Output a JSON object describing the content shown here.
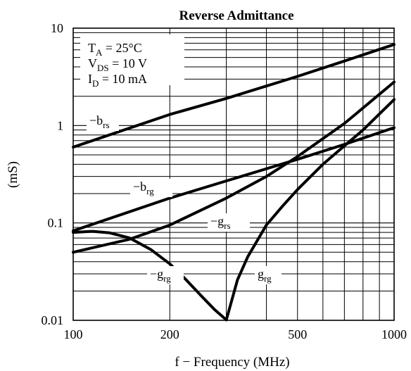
{
  "chart_data": {
    "type": "line",
    "title": "Reverse Admittance",
    "xlabel": "f − Frequency (MHz)",
    "ylabel": "(mS)",
    "xscale": "log",
    "yscale": "log",
    "xlim": [
      100,
      1000
    ],
    "ylim": [
      0.01,
      10
    ],
    "grid": true,
    "x_ticks": [
      {
        "value": 100,
        "label": "100"
      },
      {
        "value": 200,
        "label": "200"
      },
      {
        "value": 500,
        "label": "500"
      },
      {
        "value": 1000,
        "label": "1000"
      }
    ],
    "y_ticks": [
      {
        "value": 0.01,
        "label": "0.01"
      },
      {
        "value": 0.1,
        "label": "0.1"
      },
      {
        "value": 1,
        "label": "1"
      },
      {
        "value": 10,
        "label": "10"
      }
    ],
    "conditions": [
      {
        "symbol": "T",
        "sub": "A",
        "rest": " = 25°C"
      },
      {
        "symbol": "V",
        "sub": "DS",
        "rest": " = 10 V"
      },
      {
        "symbol": "I",
        "sub": "D",
        "rest": " = 10 mA"
      }
    ],
    "series": [
      {
        "name": "−brs",
        "label_main": "−b",
        "label_sub": "rs",
        "x": [
          100,
          200,
          300,
          500,
          700,
          1000
        ],
        "y": [
          0.6,
          1.3,
          1.9,
          3.2,
          4.6,
          6.8
        ]
      },
      {
        "name": "−brg",
        "label_main": "−b",
        "label_sub": "rg",
        "x": [
          100,
          200,
          300,
          500,
          700,
          1000
        ],
        "y": [
          0.083,
          0.18,
          0.27,
          0.45,
          0.64,
          0.95
        ]
      },
      {
        "name": "−grs",
        "label_main": "−g",
        "label_sub": "rs",
        "x": [
          100,
          150,
          200,
          300,
          400,
          500,
          700,
          1000
        ],
        "y": [
          0.05,
          0.068,
          0.095,
          0.18,
          0.3,
          0.48,
          1.05,
          2.8
        ]
      },
      {
        "name": "−grg",
        "label_main": "−g",
        "label_sub": "rg",
        "x": [
          100,
          115,
          130,
          150,
          175,
          200,
          225,
          250,
          275,
          300
        ],
        "y": [
          0.08,
          0.082,
          0.079,
          0.07,
          0.053,
          0.038,
          0.026,
          0.018,
          0.013,
          0.0101
        ]
      },
      {
        "name": "grg",
        "label_main": "g",
        "label_sub": "rg",
        "x": [
          300,
          325,
          350,
          400,
          450,
          500,
          600,
          700,
          800,
          1000
        ],
        "y": [
          0.0101,
          0.026,
          0.045,
          0.095,
          0.15,
          0.22,
          0.4,
          0.62,
          0.9,
          1.85
        ]
      }
    ]
  }
}
